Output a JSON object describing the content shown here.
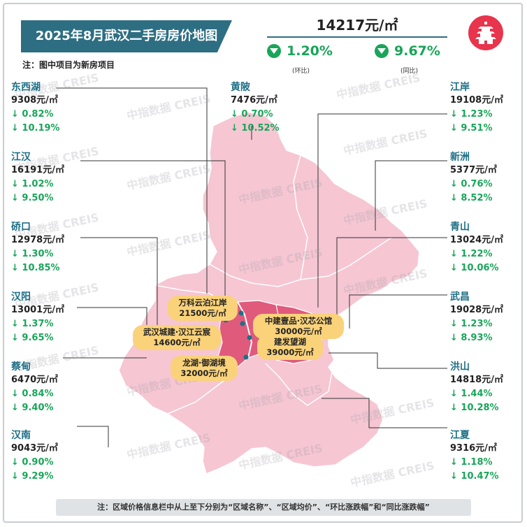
{
  "header": {
    "title": "2025年8月武汉二手房房价地图",
    "note": "注：图中项目为新房项目",
    "avg_price": "14217元/㎡",
    "mom_value": "1.20%",
    "mom_label": "(环比)",
    "yoy_value": "9.67%",
    "yoy_label": "(同比)"
  },
  "colors": {
    "title_bg": "#2e6e83",
    "decline": "#19a55a",
    "map_light": "#f6c6d3",
    "map_dark": "#e05a7c",
    "project_bg": "#fad27a",
    "logo": "#e8344c"
  },
  "districts_left": [
    {
      "name": "东西湖",
      "price": "9308元/㎡",
      "mom": "↓ 0.82%",
      "yoy": "↓ 10.19%"
    },
    {
      "name": "江汉",
      "price": "16191元/㎡",
      "mom": "↓ 1.02%",
      "yoy": "↓ 9.50%"
    },
    {
      "name": "硚口",
      "price": "12978元/㎡",
      "mom": "↓ 1.30%",
      "yoy": "↓ 10.85%"
    },
    {
      "name": "汉阳",
      "price": "13001元/㎡",
      "mom": "↓ 1.37%",
      "yoy": "↓ 9.65%"
    },
    {
      "name": "蔡甸",
      "price": "6470元/㎡",
      "mom": "↓ 0.84%",
      "yoy": "↓ 9.40%"
    },
    {
      "name": "汉南",
      "price": "9043元/㎡",
      "mom": "↓ 0.90%",
      "yoy": "↓ 9.29%"
    }
  ],
  "district_center": {
    "name": "黄陂",
    "price": "7476元/㎡",
    "mom": "↓ 0.70%",
    "yoy": "↓ 10.52%"
  },
  "districts_right": [
    {
      "name": "江岸",
      "price": "19108元/㎡",
      "mom": "↓ 1.23%",
      "yoy": "↓ 9.51%"
    },
    {
      "name": "新洲",
      "price": "5377元/㎡",
      "mom": "↓ 0.76%",
      "yoy": "↓ 8.52%"
    },
    {
      "name": "青山",
      "price": "13024元/㎡",
      "mom": "↓ 1.22%",
      "yoy": "↓ 10.06%"
    },
    {
      "name": "武昌",
      "price": "19028元/㎡",
      "mom": "↓ 1.23%",
      "yoy": "↓ 8.93%"
    },
    {
      "name": "洪山",
      "price": "14818元/㎡",
      "mom": "↓ 1.44%",
      "yoy": "↓ 10.28%"
    },
    {
      "name": "江夏",
      "price": "9316元/㎡",
      "mom": "↓ 1.18%",
      "yoy": "↓ 10.47%"
    }
  ],
  "projects": [
    {
      "name": "万科云泊江岸",
      "price": "21500元/㎡"
    },
    {
      "name": "武汉城建·汉江云宸",
      "price": "14600元/㎡"
    },
    {
      "name": "龙湖·御湖境",
      "price": "32000元/㎡"
    },
    {
      "name": "中建壹品·汉芯公馆",
      "price": "30000元/㎡"
    },
    {
      "name": "建发望湖",
      "price": "39000元/㎡"
    }
  ],
  "watermark": "中指数据 CREIS",
  "footer": "注：区域价格信息栏中从上至下分别为“区域名称”、“区域均价”、“环比涨跌幅”和“同比涨跌幅”"
}
